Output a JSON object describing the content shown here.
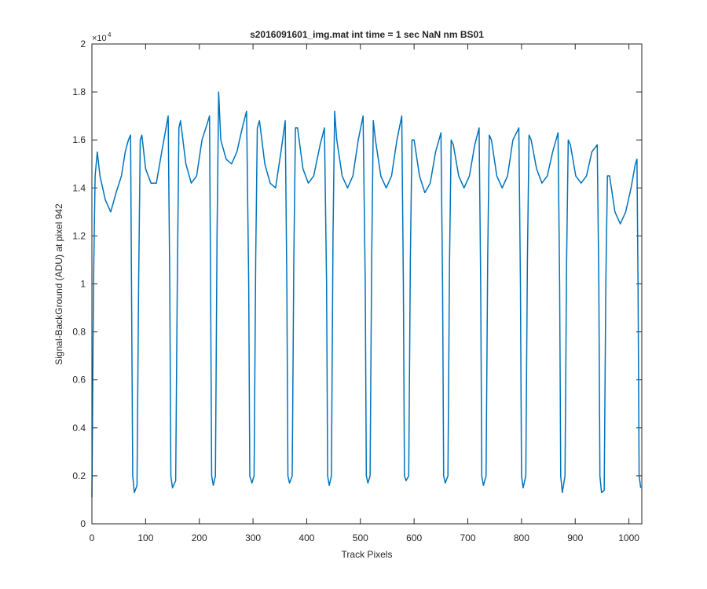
{
  "chart_data": {
    "type": "line",
    "title": "s2016091601_img.mat int time = 1 sec  NaN nm BS01",
    "xlabel": "Track Pixels",
    "ylabel": "Signal-BackGround (ADU) at pixel 942",
    "y_exponent": {
      "base": "×10",
      "power": 4
    },
    "xlim": [
      0,
      1024
    ],
    "ylim": [
      0,
      2
    ],
    "xticks": [
      0,
      100,
      200,
      300,
      400,
      500,
      600,
      700,
      800,
      900,
      1000
    ],
    "yticks": [
      0,
      0.2,
      0.4,
      0.6,
      0.8,
      1,
      1.2,
      1.4,
      1.6,
      1.8,
      2
    ],
    "x": [
      0,
      3,
      6,
      10,
      15,
      25,
      35,
      45,
      55,
      62,
      68,
      72,
      74,
      76,
      79,
      84,
      87,
      90,
      93,
      100,
      110,
      120,
      130,
      138,
      142,
      145,
      147,
      150,
      156,
      159,
      162,
      165,
      175,
      185,
      195,
      205,
      215,
      219,
      221,
      223,
      226,
      230,
      233,
      236,
      240,
      250,
      260,
      270,
      280,
      288,
      292,
      294,
      298,
      302,
      305,
      308,
      312,
      322,
      332,
      342,
      352,
      360,
      363,
      365,
      368,
      373,
      376,
      379,
      383,
      393,
      403,
      413,
      425,
      433,
      437,
      439,
      442,
      446,
      449,
      452,
      456,
      466,
      476,
      486,
      496,
      505,
      509,
      511,
      514,
      518,
      521,
      524,
      528,
      538,
      548,
      558,
      568,
      577,
      580,
      582,
      585,
      590,
      593,
      596,
      600,
      610,
      620,
      630,
      640,
      650,
      653,
      655,
      658,
      663,
      666,
      669,
      673,
      683,
      693,
      703,
      713,
      721,
      724,
      726,
      729,
      734,
      737,
      740,
      744,
      754,
      764,
      774,
      784,
      795,
      798,
      800,
      803,
      808,
      811,
      814,
      818,
      828,
      838,
      848,
      858,
      868,
      871,
      873,
      876,
      881,
      884,
      887,
      891,
      901,
      911,
      921,
      931,
      941,
      944,
      946,
      949,
      954,
      957,
      960,
      964,
      974,
      984,
      994,
      1004,
      1012,
      1015,
      1017,
      1019,
      1022
    ],
    "series": [
      {
        "color": "#0072bd",
        "values": [
          0.11,
          1.0,
          1.45,
          1.55,
          1.45,
          1.35,
          1.3,
          1.38,
          1.45,
          1.55,
          1.6,
          1.62,
          0.9,
          0.2,
          0.13,
          0.16,
          1.0,
          1.6,
          1.62,
          1.48,
          1.42,
          1.42,
          1.55,
          1.65,
          1.7,
          1.0,
          0.2,
          0.15,
          0.18,
          1.0,
          1.65,
          1.68,
          1.5,
          1.42,
          1.45,
          1.6,
          1.67,
          1.7,
          1.0,
          0.2,
          0.16,
          0.2,
          1.2,
          1.8,
          1.6,
          1.52,
          1.5,
          1.55,
          1.65,
          1.72,
          1.0,
          0.2,
          0.17,
          0.2,
          1.1,
          1.65,
          1.68,
          1.5,
          1.42,
          1.4,
          1.55,
          1.68,
          1.0,
          0.2,
          0.17,
          0.2,
          1.1,
          1.65,
          1.65,
          1.48,
          1.42,
          1.45,
          1.58,
          1.65,
          1.0,
          0.2,
          0.16,
          0.2,
          1.2,
          1.72,
          1.6,
          1.45,
          1.4,
          1.45,
          1.6,
          1.7,
          1.0,
          0.2,
          0.17,
          0.2,
          1.1,
          1.68,
          1.6,
          1.45,
          1.4,
          1.45,
          1.6,
          1.7,
          1.0,
          0.2,
          0.18,
          0.2,
          1.1,
          1.6,
          1.6,
          1.45,
          1.38,
          1.42,
          1.55,
          1.63,
          1.0,
          0.2,
          0.17,
          0.2,
          1.1,
          1.6,
          1.58,
          1.45,
          1.4,
          1.45,
          1.58,
          1.65,
          1.0,
          0.2,
          0.16,
          0.2,
          1.1,
          1.62,
          1.6,
          1.45,
          1.4,
          1.45,
          1.6,
          1.65,
          1.0,
          0.2,
          0.15,
          0.2,
          1.1,
          1.62,
          1.6,
          1.48,
          1.42,
          1.45,
          1.55,
          1.63,
          1.0,
          0.2,
          0.13,
          0.2,
          1.1,
          1.6,
          1.58,
          1.45,
          1.42,
          1.45,
          1.55,
          1.58,
          1.0,
          0.2,
          0.13,
          0.14,
          1.0,
          1.45,
          1.45,
          1.3,
          1.25,
          1.3,
          1.4,
          1.5,
          1.52,
          1.0,
          0.2,
          0.15
        ]
      }
    ]
  }
}
